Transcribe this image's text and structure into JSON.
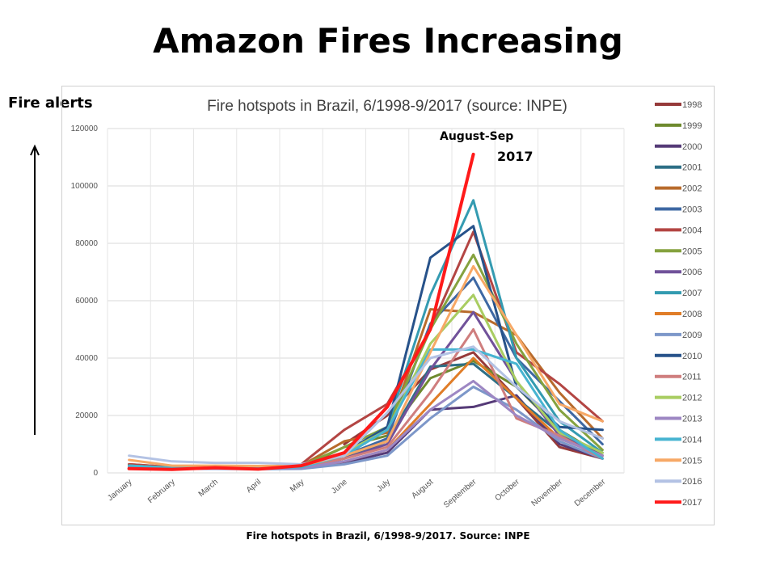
{
  "slide": {
    "title": "Amazon Fires Increasing",
    "side_label": "Fire alerts",
    "caption": "Fire hotspots in Brazil, 6/1998-9/2017. Source: INPE"
  },
  "chart_data": {
    "type": "line",
    "title": "Fire hotspots in Brazil, 6/1998-9/2017 (source: INPE)",
    "categories": [
      "January",
      "February",
      "March",
      "April",
      "May",
      "June",
      "July",
      "August",
      "September",
      "October",
      "November",
      "December"
    ],
    "ylim": [
      0,
      120000
    ],
    "yticks": [
      0,
      20000,
      40000,
      60000,
      80000,
      100000,
      120000
    ],
    "grid": true,
    "legend_position": "right",
    "annotation": {
      "line1": "August-Sep",
      "line2": "2017"
    },
    "series": [
      {
        "name": "1998",
        "color": "#963a3a",
        "values": [
          null,
          null,
          null,
          null,
          null,
          10000,
          20000,
          36000,
          42000,
          26000,
          9000,
          5000
        ]
      },
      {
        "name": "1999",
        "color": "#6e8a2e",
        "values": [
          2500,
          1800,
          1700,
          1600,
          1900,
          9000,
          13000,
          33000,
          39000,
          30000,
          15000,
          6000
        ]
      },
      {
        "name": "2000",
        "color": "#553a77",
        "values": [
          2000,
          1500,
          1500,
          1400,
          1500,
          3500,
          7000,
          22000,
          23000,
          27000,
          10000,
          5000
        ]
      },
      {
        "name": "2001",
        "color": "#2d6f86",
        "values": [
          2200,
          1600,
          1800,
          1500,
          1800,
          5000,
          11000,
          37000,
          38000,
          26000,
          14000,
          6000
        ]
      },
      {
        "name": "2002",
        "color": "#b86b2c",
        "values": [
          3000,
          2000,
          2200,
          2000,
          2500,
          11000,
          14000,
          57000,
          56000,
          48000,
          28000,
          12000
        ]
      },
      {
        "name": "2003",
        "color": "#3e68a3",
        "values": [
          2800,
          1800,
          2000,
          1900,
          2000,
          6000,
          12000,
          52000,
          68000,
          40000,
          25000,
          10000
        ]
      },
      {
        "name": "2004",
        "color": "#b34543",
        "values": [
          3000,
          2000,
          2200,
          2000,
          3000,
          15000,
          24000,
          50000,
          84000,
          42000,
          31000,
          18000
        ]
      },
      {
        "name": "2005",
        "color": "#85a23f",
        "values": [
          2500,
          1800,
          2000,
          1800,
          2500,
          9000,
          16000,
          50000,
          76000,
          45000,
          22000,
          8000
        ]
      },
      {
        "name": "2006",
        "color": "#71529a",
        "values": [
          2000,
          1500,
          1600,
          1500,
          1800,
          5000,
          10000,
          36000,
          56000,
          32000,
          13000,
          6000
        ]
      },
      {
        "name": "2007",
        "color": "#349bb1",
        "values": [
          2500,
          1700,
          1800,
          1600,
          2000,
          7000,
          16000,
          62000,
          95000,
          40000,
          18000,
          7000
        ]
      },
      {
        "name": "2008",
        "color": "#e07d28",
        "values": [
          2200,
          1500,
          1500,
          1400,
          1500,
          4000,
          8000,
          24000,
          40000,
          26000,
          12000,
          6000
        ]
      },
      {
        "name": "2009",
        "color": "#7d97c9",
        "values": [
          2000,
          1400,
          1400,
          1300,
          1400,
          3000,
          6000,
          19000,
          30000,
          22000,
          11000,
          5000
        ]
      },
      {
        "name": "2010",
        "color": "#27528a",
        "values": [
          2500,
          1800,
          1900,
          1800,
          2200,
          7000,
          16000,
          75000,
          86000,
          30000,
          16000,
          15000
        ]
      },
      {
        "name": "2011",
        "color": "#cf7e7e",
        "values": [
          2200,
          1500,
          1600,
          1500,
          1800,
          5000,
          9000,
          28000,
          50000,
          19000,
          13000,
          5000
        ]
      },
      {
        "name": "2012",
        "color": "#a9cd62",
        "values": [
          2500,
          1800,
          1800,
          1700,
          2200,
          7000,
          15000,
          45000,
          62000,
          32000,
          14000,
          7000
        ]
      },
      {
        "name": "2013",
        "color": "#9d87c3",
        "values": [
          2200,
          1500,
          1500,
          1500,
          1700,
          4000,
          8000,
          22000,
          32000,
          20000,
          12000,
          6000
        ]
      },
      {
        "name": "2014",
        "color": "#47b4d1",
        "values": [
          2500,
          1800,
          1800,
          1700,
          2000,
          6000,
          15000,
          43000,
          43000,
          38000,
          15000,
          5000
        ]
      },
      {
        "name": "2015",
        "color": "#f7a866",
        "values": [
          4500,
          2500,
          2500,
          2400,
          2500,
          6000,
          11000,
          42000,
          72000,
          48000,
          24000,
          18000
        ]
      },
      {
        "name": "2016",
        "color": "#b3c2e4",
        "values": [
          6000,
          4000,
          3500,
          3500,
          3000,
          6000,
          21000,
          40000,
          44000,
          30000,
          18000,
          12000
        ]
      },
      {
        "name": "2017",
        "color": "#ff1a1a",
        "values": [
          1500,
          1200,
          1800,
          1300,
          2500,
          7000,
          23000,
          50000,
          111000,
          null,
          null,
          null
        ]
      }
    ]
  }
}
